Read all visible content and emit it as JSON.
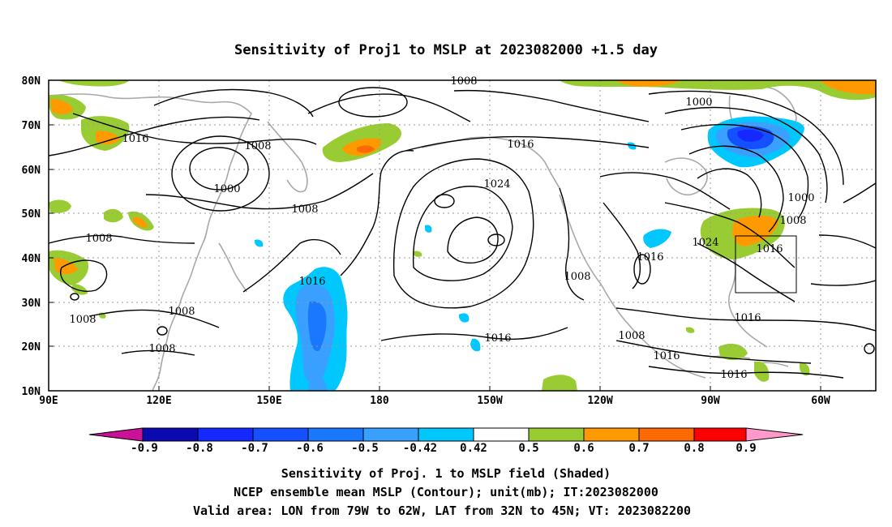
{
  "title": "Sensitivity of Proj1 to MSLP at 2023082000 +1.5 day",
  "lat_labels": [
    "80N",
    "70N",
    "60N",
    "50N",
    "40N",
    "30N",
    "20N",
    "10N"
  ],
  "lon_labels": [
    "90E",
    "120E",
    "150E",
    "180",
    "150W",
    "120W",
    "90W",
    "60W"
  ],
  "contour_labels": [
    "1008",
    "1000",
    "1016",
    "1008",
    "1000",
    "1008",
    "1016",
    "1024",
    "1000",
    "1008",
    "1024",
    "1016",
    "1008",
    "1016",
    "1008",
    "1008",
    "1016",
    "1008",
    "1016",
    "1008",
    "1016",
    "1016",
    "1008",
    "1016"
  ],
  "colorbar": {
    "labels": [
      "-0.9",
      "-0.8",
      "-0.7",
      "-0.6",
      "-0.5",
      "-0.42",
      "0.42",
      "0.5",
      "0.6",
      "0.7",
      "0.8",
      "0.9"
    ],
    "colors": [
      "#0a0ab0",
      "#1428ff",
      "#1450ff",
      "#1a78ff",
      "#3aa0ff",
      "#00c8ff",
      "#ffffff",
      "#99cc33",
      "#ff9900",
      "#ff6a00",
      "#ff3300",
      "#ff0000"
    ],
    "low_end_color": "#cc1199",
    "high_end_color": "#ff99cc"
  },
  "footer": {
    "line1": "Sensitivity of Proj. 1 to MSLP field (Shaded)",
    "line2": "NCEP ensemble mean MSLP (Contour); unit(mb); IT:2023082000",
    "line3": "Valid area: LON from 79W to 62W, LAT from 32N to 45N; VT: 2023082200"
  },
  "valid_area": {
    "lon_min": -79,
    "lon_max": -62,
    "lat_min": 32,
    "lat_max": 45
  },
  "map_extent": {
    "lon_min": 90,
    "lon_max": 315,
    "lat_min": 10,
    "lat_max": 80
  }
}
